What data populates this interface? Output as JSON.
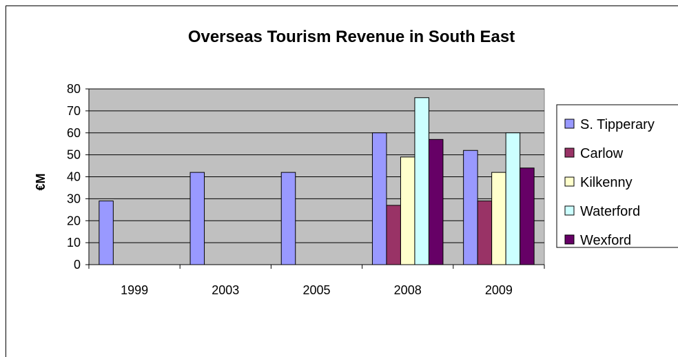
{
  "chart_data": {
    "type": "bar",
    "title": "Overseas Tourism Revenue in South East",
    "xlabel": "",
    "ylabel": "€M",
    "ylim": [
      0,
      80
    ],
    "yticks": [
      0,
      10,
      20,
      30,
      40,
      50,
      60,
      70,
      80
    ],
    "grid": true,
    "legend_position": "right",
    "plot_background": "#c0c0c0",
    "categories": [
      "1999",
      "2003",
      "2005",
      "2008",
      "2009"
    ],
    "series": [
      {
        "name": "S. Tipperary",
        "color": "#9999ff",
        "values": [
          29,
          42,
          42,
          60,
          52
        ]
      },
      {
        "name": "Carlow",
        "color": "#993366",
        "values": [
          null,
          null,
          null,
          27,
          29
        ]
      },
      {
        "name": "Kilkenny",
        "color": "#ffffcc",
        "values": [
          null,
          null,
          null,
          49,
          42
        ]
      },
      {
        "name": "Waterford",
        "color": "#ccffff",
        "values": [
          null,
          null,
          null,
          76,
          60
        ]
      },
      {
        "name": "Wexford",
        "color": "#660066",
        "values": [
          null,
          null,
          null,
          57,
          44
        ]
      }
    ]
  }
}
